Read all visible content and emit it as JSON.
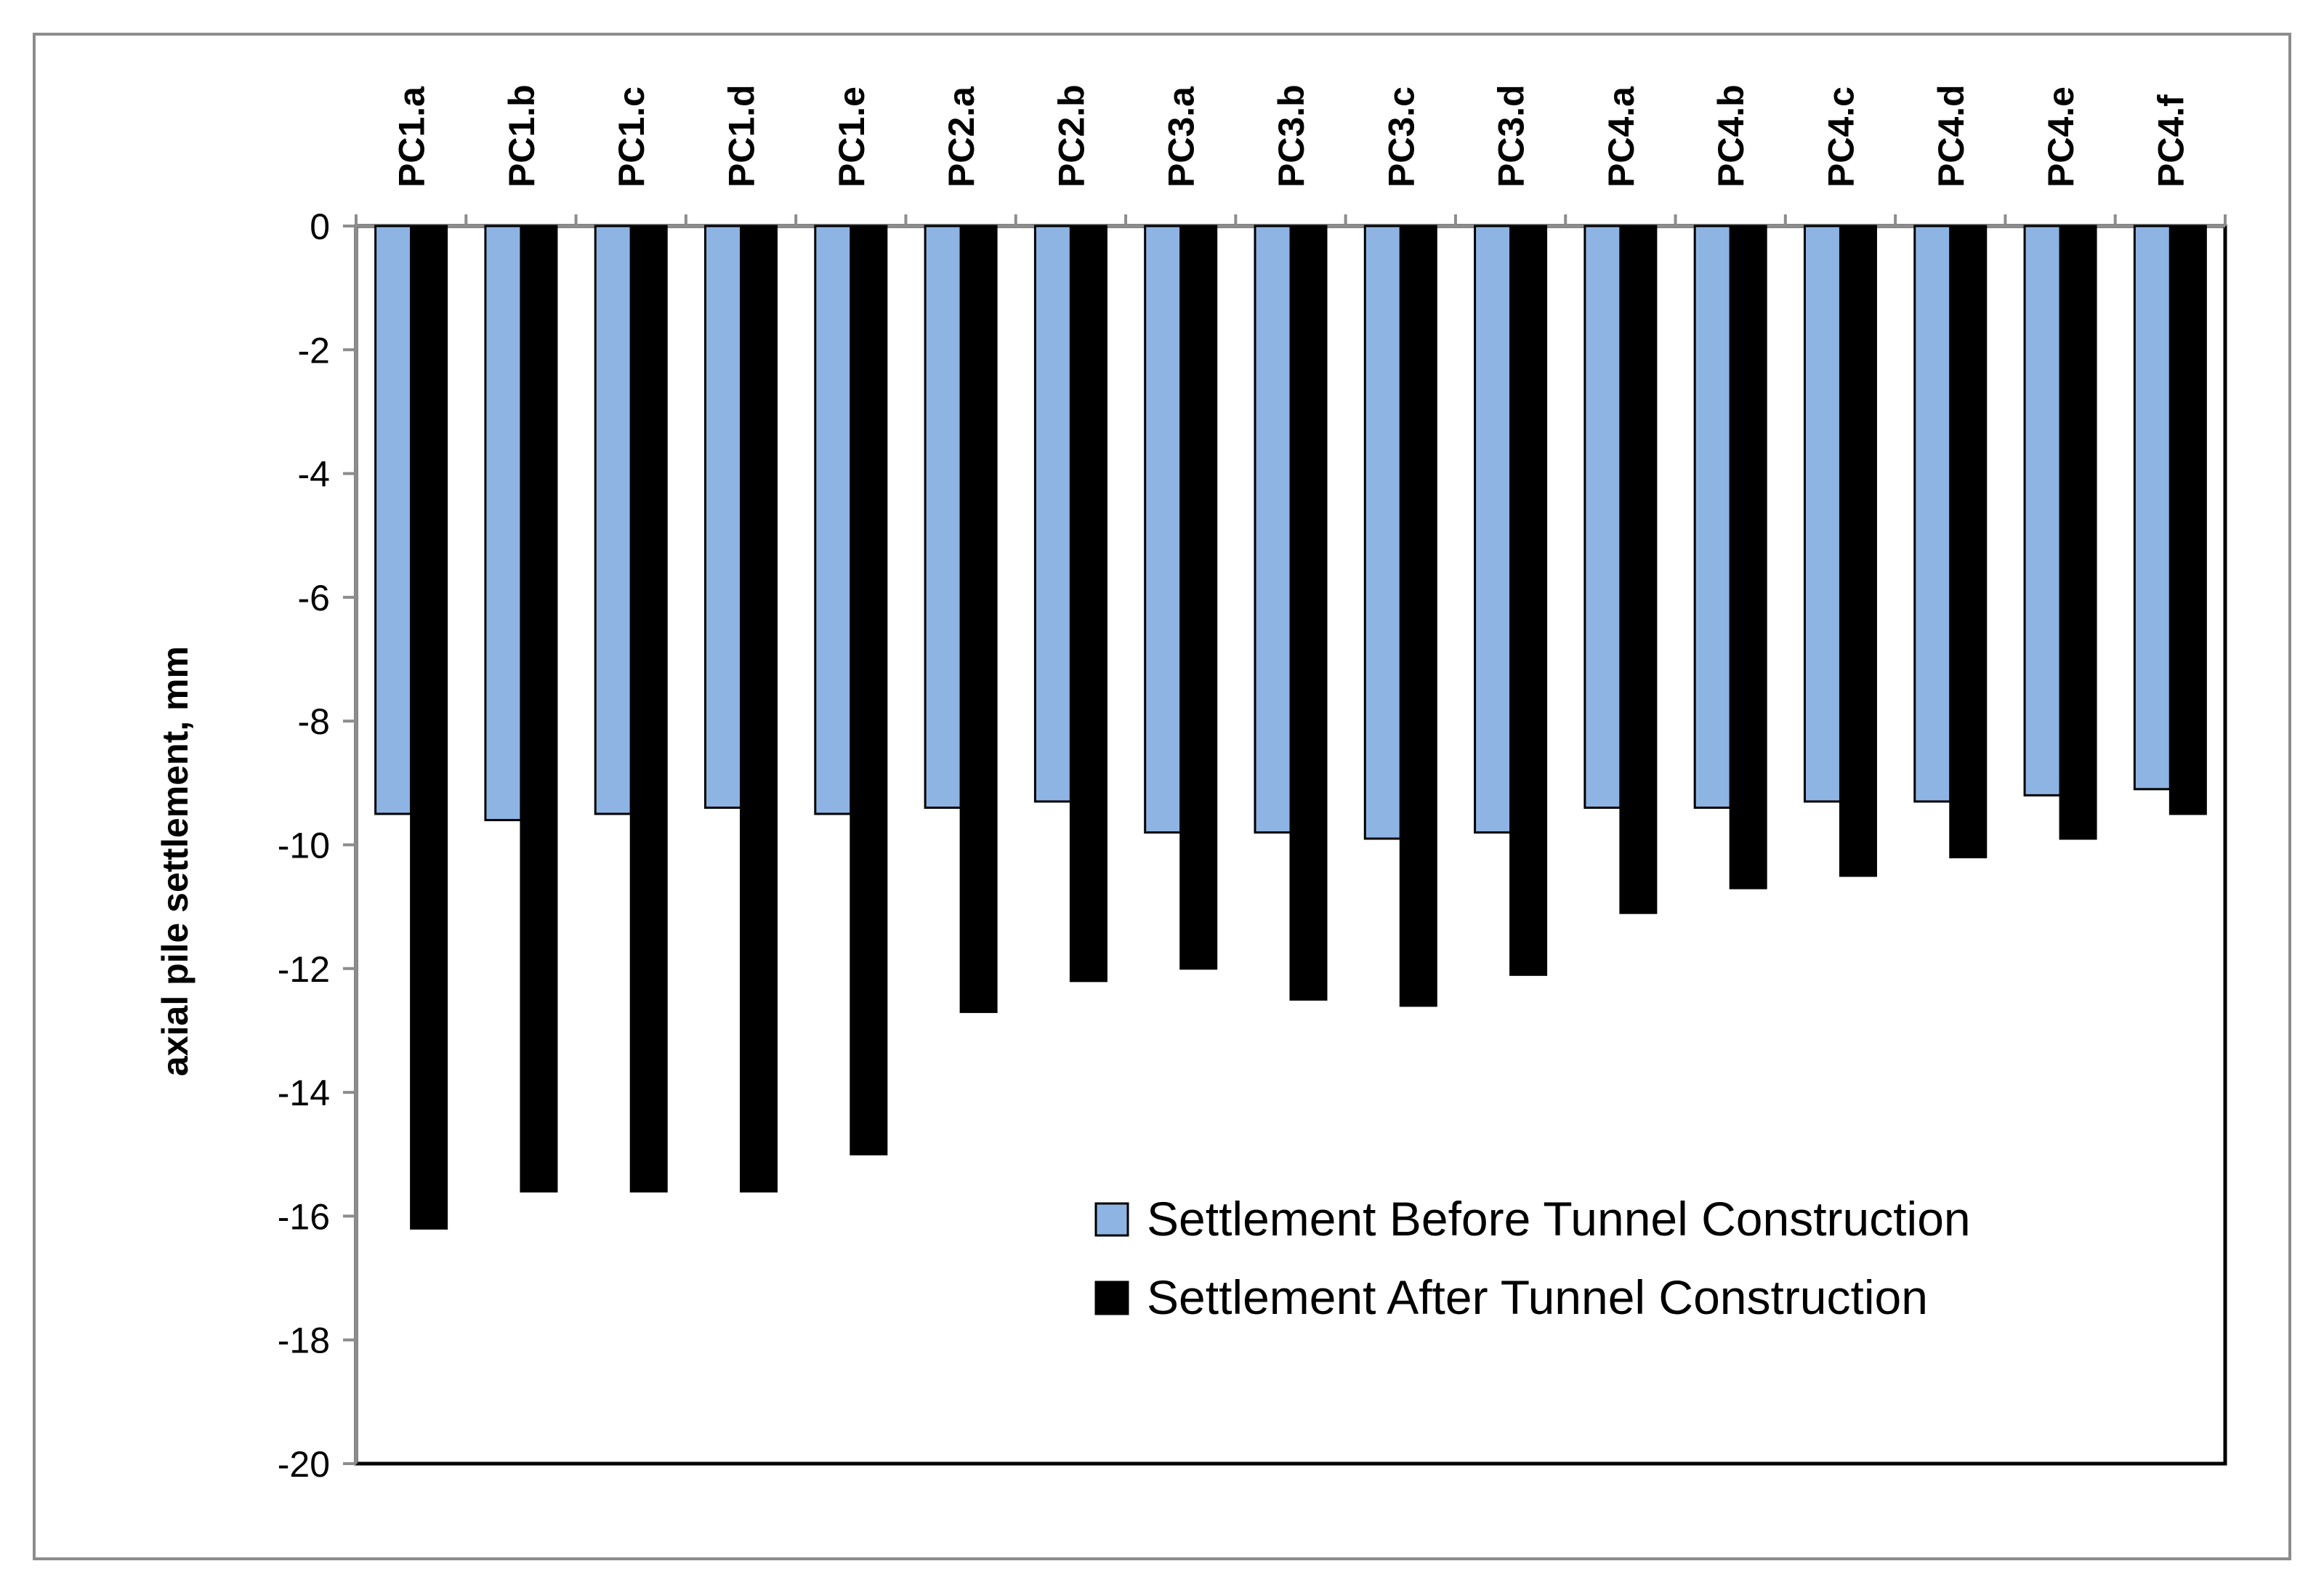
{
  "chart_data": {
    "type": "bar",
    "title": "",
    "xlabel": "",
    "ylabel": "axial pile settlement, mm",
    "ylim": [
      -20,
      0
    ],
    "yticks": [
      0,
      -2,
      -4,
      -6,
      -8,
      -10,
      -12,
      -14,
      -16,
      -18,
      -20
    ],
    "grid": false,
    "x_axis_position": "top",
    "legend_position": "bottom-right",
    "categories": [
      "PC1.a",
      "PC1.b",
      "PC1.c",
      "PC1.d",
      "PC1.e",
      "PC2.a",
      "PC2.b",
      "PC3.a",
      "PC3.b",
      "PC3.c",
      "PC3.d",
      "PC4.a",
      "PC4.b",
      "PC4.c",
      "PC4.d",
      "PC4.e",
      "PC4.f"
    ],
    "series": [
      {
        "name": "Settlement Before Tunnel Construction",
        "color": "#8eb4e3",
        "values": [
          -9.5,
          -9.6,
          -9.5,
          -9.4,
          -9.5,
          -9.4,
          -9.3,
          -9.8,
          -9.8,
          -9.9,
          -9.8,
          -9.4,
          -9.4,
          -9.3,
          -9.3,
          -9.2,
          -9.1
        ]
      },
      {
        "name": "Settlement After Tunnel Construction",
        "color": "#000000",
        "values": [
          -16.2,
          -15.6,
          -15.6,
          -15.6,
          -15.0,
          -12.7,
          -12.2,
          -12.0,
          -12.5,
          -12.6,
          -12.1,
          -11.1,
          -10.7,
          -10.5,
          -10.2,
          -9.9,
          -9.5
        ]
      }
    ]
  }
}
